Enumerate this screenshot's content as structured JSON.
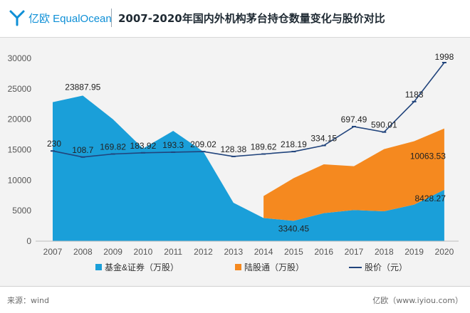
{
  "header": {
    "brand": "亿欧 EqualOcean",
    "title": "2007-2020年国内外机构茅台持仓数量变化与股价对比"
  },
  "footer": {
    "source": "来源：wind",
    "site": "亿欧（www.iyiou.com）"
  },
  "colors": {
    "fund": "#1a9fd9",
    "hk": "#f5891f",
    "price": "#21447c",
    "brand": "#0e8fd6"
  },
  "chart_data": {
    "type": "area",
    "categories": [
      "2007",
      "2008",
      "2009",
      "2010",
      "2011",
      "2012",
      "2013",
      "2014",
      "2015",
      "2016",
      "2017",
      "2018",
      "2019",
      "2020"
    ],
    "ylim": [
      0,
      30000
    ],
    "y_ticks": [
      0,
      5000,
      10000,
      15000,
      20000,
      25000,
      30000
    ],
    "y_tick_labels": [
      "0",
      "5000",
      "10000",
      "15000",
      "20000",
      "25000",
      "30000"
    ],
    "grid": false,
    "legend_position": "bottom",
    "series": [
      {
        "name": "基金&证券（万股）",
        "type": "area",
        "color": "#1a9fd9",
        "values": [
          22800,
          23887.95,
          20000,
          15200,
          18100,
          14700,
          6300,
          3800,
          3340.45,
          4600,
          5100,
          4900,
          6000,
          8428.27
        ]
      },
      {
        "name": "陆股通（万股）",
        "type": "stacked-area",
        "color": "#f5891f",
        "values": [
          null,
          null,
          null,
          null,
          null,
          null,
          null,
          3600,
          7000,
          8000,
          7200,
          10200,
          10400,
          10063.53
        ]
      },
      {
        "name": "股价（元）",
        "type": "line",
        "color": "#21447c",
        "values": [
          230,
          108.7,
          169.82,
          183.92,
          193.3,
          209.02,
          128.38,
          189.62,
          218.19,
          334.15,
          697.49,
          590.01,
          1183,
          1998
        ],
        "plotted_y": [
          14800,
          13800,
          14300,
          14500,
          14600,
          14700,
          13900,
          14300,
          14700,
          15700,
          18800,
          17900,
          22900,
          29300
        ]
      }
    ],
    "data_labels": [
      {
        "text": "230",
        "series": 2,
        "i": 0
      },
      {
        "text": "108.7",
        "series": 2,
        "i": 1
      },
      {
        "text": "169.82",
        "series": 2,
        "i": 2
      },
      {
        "text": "183.92",
        "series": 2,
        "i": 3
      },
      {
        "text": "193.3",
        "series": 2,
        "i": 4
      },
      {
        "text": "209.02",
        "series": 2,
        "i": 5
      },
      {
        "text": "128.38",
        "series": 2,
        "i": 6
      },
      {
        "text": "189.62",
        "series": 2,
        "i": 7
      },
      {
        "text": "218.19",
        "series": 2,
        "i": 8
      },
      {
        "text": "334.15",
        "series": 2,
        "i": 9
      },
      {
        "text": "697.49",
        "series": 2,
        "i": 10
      },
      {
        "text": "590.01",
        "series": 2,
        "i": 11
      },
      {
        "text": "1183",
        "series": 2,
        "i": 12
      },
      {
        "text": "1998",
        "series": 2,
        "i": 13
      },
      {
        "text": "23887.95",
        "series": 0,
        "i": 1
      },
      {
        "text": "3340.45",
        "series": 0,
        "i": 8
      },
      {
        "text": "8428.27",
        "series": 0,
        "i": 13
      },
      {
        "text": "10063.53",
        "series": 1,
        "i": 13
      }
    ]
  }
}
